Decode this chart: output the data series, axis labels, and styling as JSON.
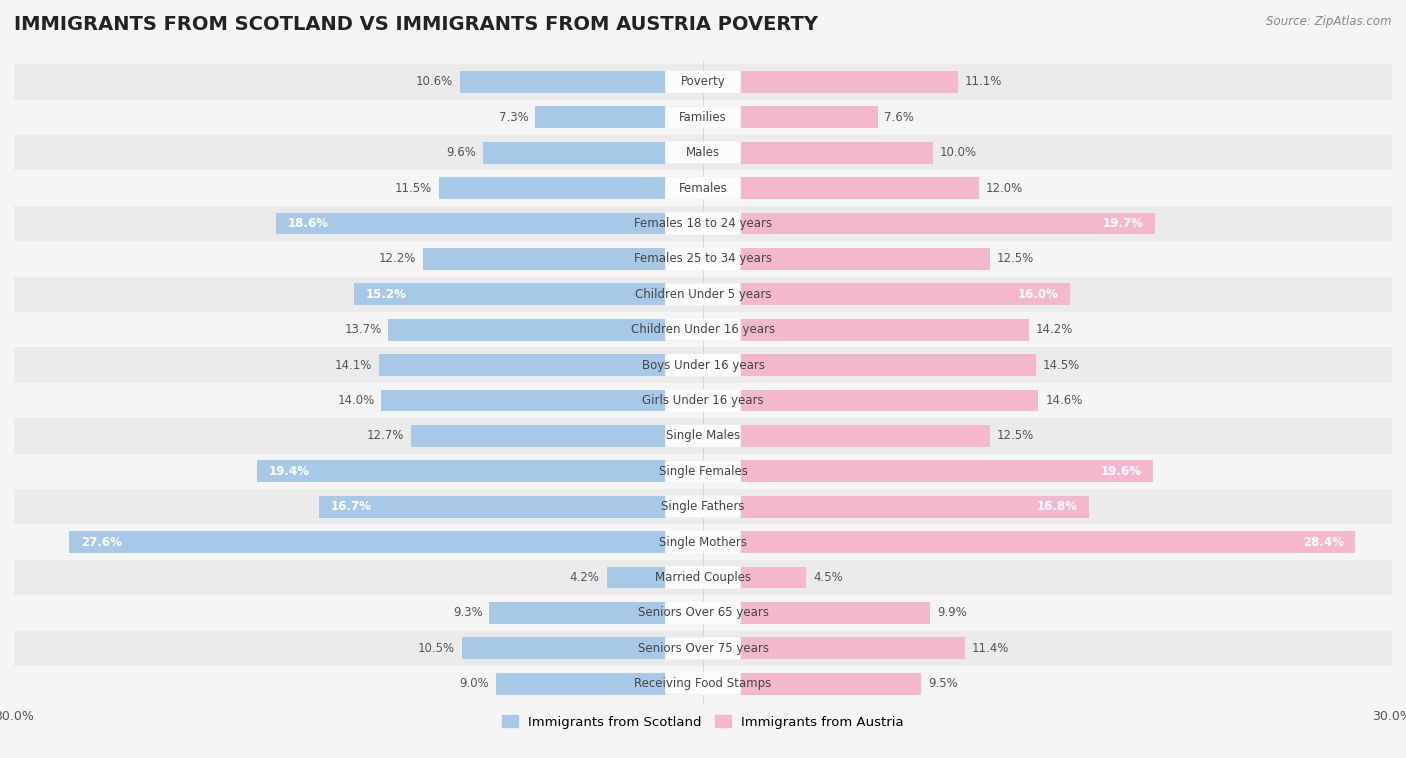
{
  "title": "IMMIGRANTS FROM SCOTLAND VS IMMIGRANTS FROM AUSTRIA POVERTY",
  "source": "Source: ZipAtlas.com",
  "categories": [
    "Poverty",
    "Families",
    "Males",
    "Females",
    "Females 18 to 24 years",
    "Females 25 to 34 years",
    "Children Under 5 years",
    "Children Under 16 years",
    "Boys Under 16 years",
    "Girls Under 16 years",
    "Single Males",
    "Single Females",
    "Single Fathers",
    "Single Mothers",
    "Married Couples",
    "Seniors Over 65 years",
    "Seniors Over 75 years",
    "Receiving Food Stamps"
  ],
  "scotland_values": [
    10.6,
    7.3,
    9.6,
    11.5,
    18.6,
    12.2,
    15.2,
    13.7,
    14.1,
    14.0,
    12.7,
    19.4,
    16.7,
    27.6,
    4.2,
    9.3,
    10.5,
    9.0
  ],
  "austria_values": [
    11.1,
    7.6,
    10.0,
    12.0,
    19.7,
    12.5,
    16.0,
    14.2,
    14.5,
    14.6,
    12.5,
    19.6,
    16.8,
    28.4,
    4.5,
    9.9,
    11.4,
    9.5
  ],
  "scotland_color": "#a8c8e8",
  "austria_color": "#f4b8cc",
  "scotland_label": "Immigrants from Scotland",
  "austria_label": "Immigrants from Austria",
  "xlim": 30.0,
  "background_color": "#f5f5f5",
  "row_color_even": "#ebebeb",
  "row_color_odd": "#f5f5f5",
  "title_fontsize": 14,
  "value_fontsize": 8.5,
  "cat_fontsize": 8.5
}
